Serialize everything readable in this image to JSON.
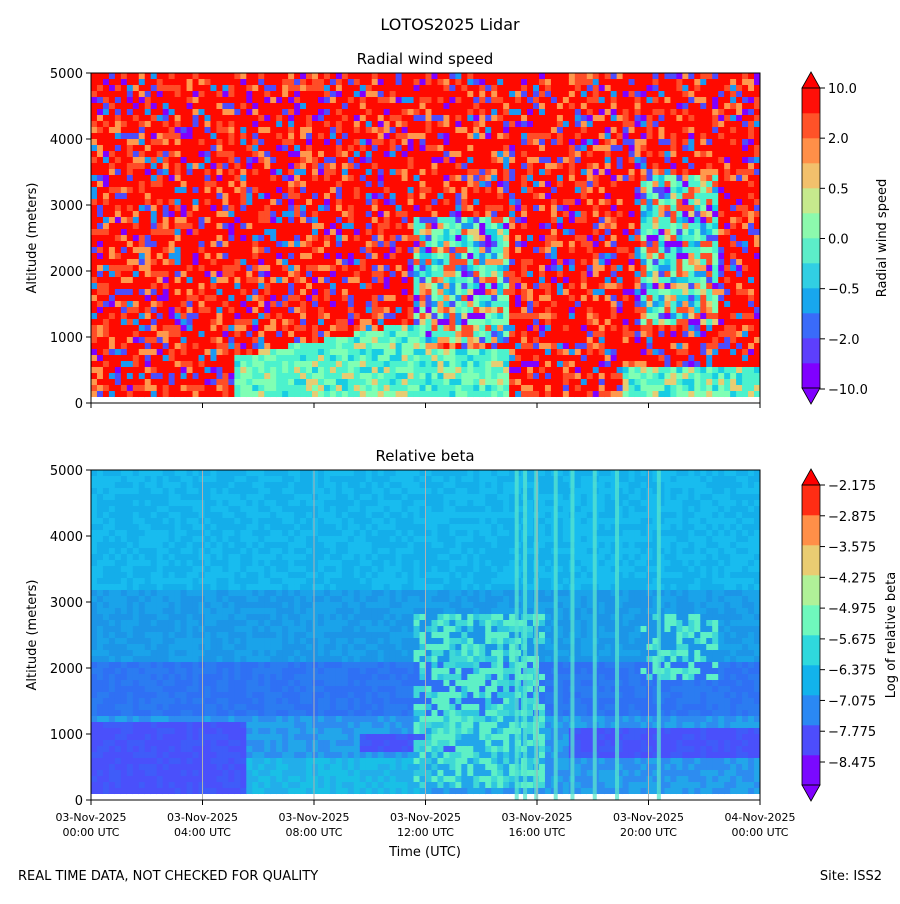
{
  "figure_title": "LOTOS2025 Lidar",
  "footer_left": "REAL TIME DATA, NOT CHECKED FOR QUALITY",
  "footer_right": "Site: ISS2",
  "colors": {
    "rainbow": [
      "#8000ff",
      "#4d4dfc",
      "#1a99f2",
      "#19cde3",
      "#4cf2cd",
      "#80ffb4",
      "#b3f396",
      "#e6cd73",
      "#ff994d",
      "#ff4d27",
      "#ff0000"
    ],
    "axis": "#000000",
    "grid": "#b0b0b0"
  },
  "chart_data": [
    {
      "type": "heatmap",
      "title": "Radial wind speed",
      "ylabel": "Altitude (meters)",
      "xlabel": "",
      "ylim": [
        0,
        5000
      ],
      "yticks": [
        "0",
        "1000",
        "2000",
        "3000",
        "4000",
        "5000"
      ],
      "xticks": [
        "",
        "",
        "",
        "",
        "",
        "",
        ""
      ],
      "colorbar": {
        "label": "Radial wind speed",
        "ticks": [
          "10.0",
          "2.0",
          "0.5",
          "0.0",
          "−0.5",
          "−2.0",
          "−10.0"
        ],
        "levels": 12
      }
    },
    {
      "type": "heatmap",
      "title": "Relative beta",
      "ylabel": "Altitude (meters)",
      "xlabel": "Time (UTC)",
      "ylim": [
        0,
        5000
      ],
      "yticks": [
        "0",
        "1000",
        "2000",
        "3000",
        "4000",
        "5000"
      ],
      "xticks": [
        [
          "03-Nov-2025",
          "00:00 UTC"
        ],
        [
          "03-Nov-2025",
          "04:00 UTC"
        ],
        [
          "03-Nov-2025",
          "08:00 UTC"
        ],
        [
          "03-Nov-2025",
          "12:00 UTC"
        ],
        [
          "03-Nov-2025",
          "16:00 UTC"
        ],
        [
          "03-Nov-2025",
          "20:00 UTC"
        ],
        [
          "04-Nov-2025",
          "00:00 UTC"
        ]
      ],
      "colorbar": {
        "label": "Log of relative beta",
        "ticks": [
          "−2.175",
          "−2.875",
          "−3.575",
          "−4.275",
          "−4.975",
          "−5.675",
          "−6.375",
          "−7.075",
          "−7.775",
          "−8.475"
        ],
        "levels": 10
      }
    }
  ]
}
